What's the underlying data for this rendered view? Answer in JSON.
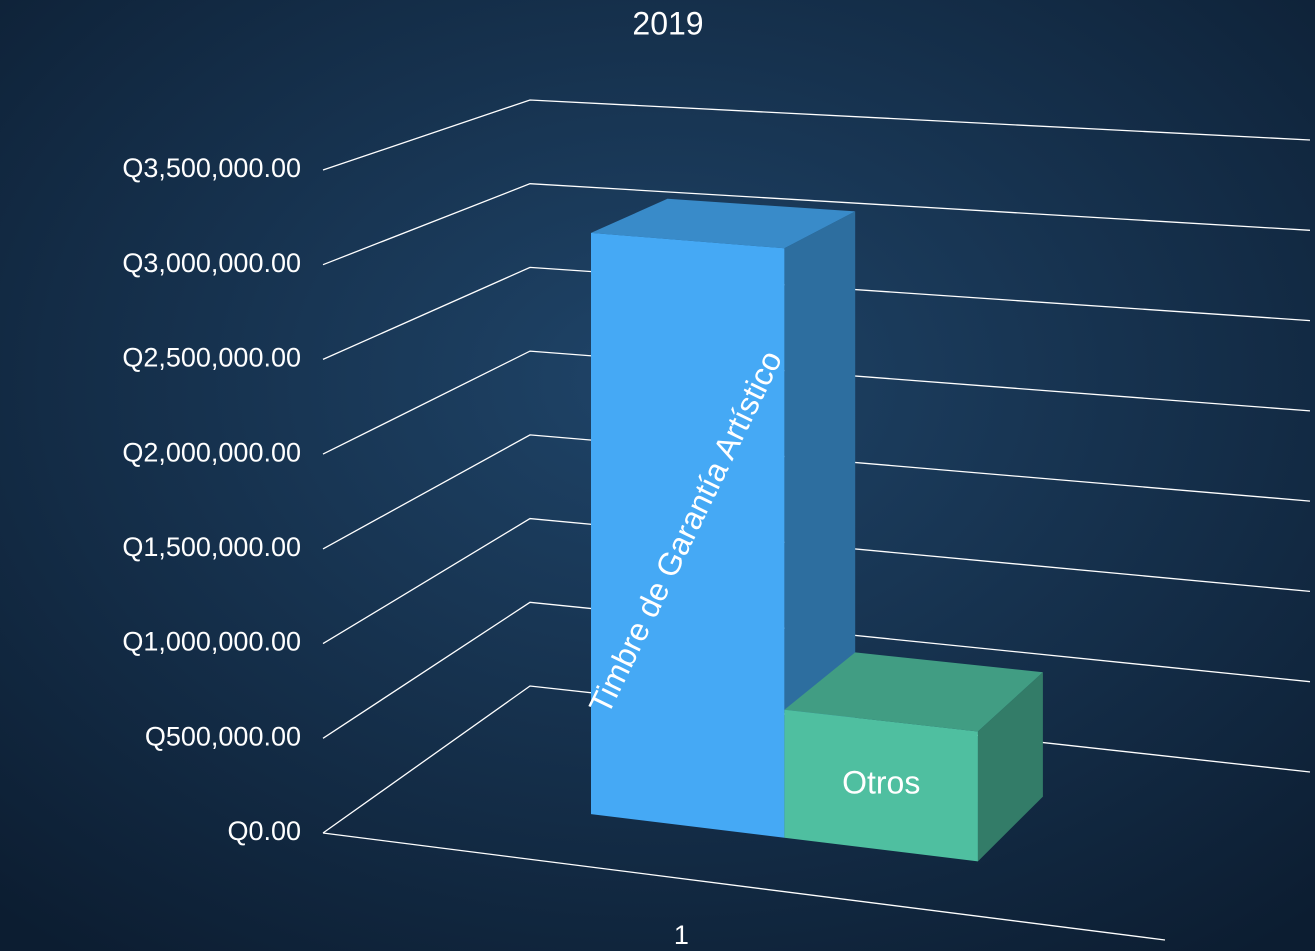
{
  "chart_data": {
    "type": "bar3d",
    "title": "2019",
    "categories": [
      "1"
    ],
    "series": [
      {
        "name": "Timbre de Garantía Artístico",
        "color": "#45a9f5",
        "values": [
          3130000
        ]
      },
      {
        "name": "Otros",
        "color": "#4fbfa0",
        "values": [
          680000
        ]
      }
    ],
    "ylim": [
      0,
      3500000
    ],
    "yticks": [
      {
        "value": 0,
        "label": "Q0.00"
      },
      {
        "value": 500000,
        "label": "Q500,000.00"
      },
      {
        "value": 1000000,
        "label": "Q1,000,000.00"
      },
      {
        "value": 1500000,
        "label": "Q1,500,000.00"
      },
      {
        "value": 2000000,
        "label": "Q2,000,000.00"
      },
      {
        "value": 2500000,
        "label": "Q2,500,000.00"
      },
      {
        "value": 3000000,
        "label": "Q3,000,000.00"
      },
      {
        "value": 3500000,
        "label": "Q3,500,000.00"
      }
    ],
    "grid": true
  }
}
